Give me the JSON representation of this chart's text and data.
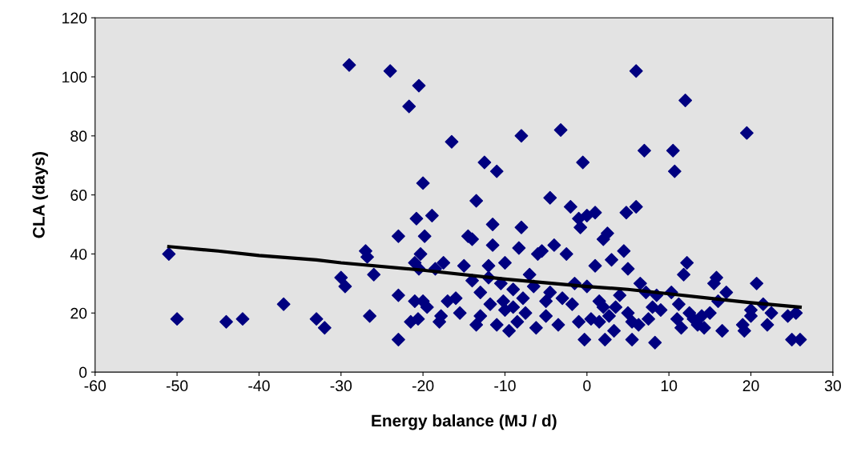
{
  "chart_data": {
    "type": "scatter",
    "xlabel": "Energy balance (MJ / d)",
    "ylabel": "CLA (days)",
    "xlim": [
      -60,
      30
    ],
    "xticks": [
      -60,
      -50,
      -40,
      -30,
      -20,
      -10,
      0,
      10,
      20,
      30
    ],
    "ylim": [
      0,
      120
    ],
    "yticks": [
      0,
      20,
      40,
      60,
      80,
      100,
      120
    ],
    "grid": false,
    "legend": false,
    "marker": "diamond",
    "series": [
      {
        "color": "#000080",
        "x": [
          -51,
          -50,
          -44,
          -42,
          -37,
          -33,
          -32,
          -30,
          -29.5,
          -29,
          -27,
          -26.8,
          -26.5,
          -26,
          -24,
          -23,
          -23,
          -23,
          -21.7,
          -21.5,
          -21,
          -21,
          -20.8,
          -20.5,
          -20.3,
          -20.6,
          -20.5,
          -20,
          -20,
          -19.8,
          -19.5,
          -18.9,
          -18.5,
          -18,
          -17.8,
          -17.5,
          -17,
          -16.5,
          -16,
          -15.5,
          -15,
          -14.5,
          -14,
          -14,
          -13.5,
          -13.5,
          -13,
          -13,
          -12.5,
          -12,
          -12,
          -11.8,
          -11.5,
          -11.5,
          -11,
          -11,
          -10.5,
          -10.2,
          -10,
          -10,
          -9.5,
          -9,
          -9,
          -8.5,
          -8.3,
          -8,
          -8,
          -7.8,
          -7.5,
          -7,
          -6.5,
          -6.2,
          -6,
          -5.5,
          -5,
          -5,
          -4.5,
          -4.5,
          -4,
          -3.5,
          -3.2,
          -3,
          -2.5,
          -2,
          -1.8,
          -1.5,
          -1,
          -1,
          -0.8,
          -0.5,
          -0.3,
          0,
          0,
          0.5,
          1,
          1,
          1.5,
          1.5,
          2,
          2,
          2.2,
          2.5,
          2.7,
          3,
          3.3,
          3.5,
          4,
          4.5,
          4.8,
          5,
          5,
          5.5,
          5.5,
          6,
          6,
          6.3,
          6.5,
          7,
          7.2,
          7.5,
          8,
          8.3,
          8.5,
          9,
          10.3,
          10.5,
          10.7,
          11,
          11.2,
          11.5,
          11.8,
          12,
          12.2,
          12.5,
          13,
          13.5,
          14,
          14.3,
          15,
          15.5,
          15.8,
          16,
          16.5,
          17,
          19,
          19.2,
          19.5,
          20,
          20,
          20.7,
          21.5,
          22,
          22.5,
          24.5,
          25,
          25.5,
          26
        ],
        "values": [
          40,
          18,
          17,
          18,
          23,
          18,
          15,
          32,
          29,
          104,
          41,
          39,
          19,
          33,
          102,
          26,
          46,
          11,
          90,
          17,
          24,
          37,
          52,
          35,
          40,
          18,
          97,
          64,
          24,
          46,
          22,
          53,
          35,
          17,
          19,
          37,
          24,
          78,
          25,
          20,
          36,
          46,
          45,
          31,
          58,
          16,
          27,
          19,
          71,
          36,
          32,
          23,
          50,
          43,
          68,
          16,
          30,
          24,
          37,
          21,
          14,
          28,
          22,
          17,
          42,
          80,
          49,
          25,
          20,
          33,
          29,
          15,
          40,
          41,
          24,
          19,
          59,
          27,
          43,
          16,
          82,
          25,
          40,
          56,
          23,
          30,
          52,
          17,
          49,
          71,
          11,
          53,
          29,
          18,
          54,
          36,
          17,
          24,
          22,
          45,
          11,
          47,
          19,
          38,
          14,
          22,
          26,
          41,
          54,
          20,
          35,
          11,
          17,
          56,
          102,
          16,
          30,
          75,
          27,
          18,
          22,
          10,
          26,
          21,
          27,
          75,
          68,
          18,
          23,
          15,
          33,
          92,
          37,
          20,
          18,
          16,
          19,
          15,
          20,
          30,
          32,
          24,
          14,
          27,
          16,
          14,
          81,
          21,
          19,
          30,
          23,
          16,
          20,
          19,
          11,
          20,
          11
        ]
      },
      {
        "type": "line",
        "color": "#000000",
        "marker": "none",
        "x": [
          -51,
          -45,
          -40,
          -33,
          -30,
          -20,
          -10,
          0,
          5,
          10,
          15,
          20,
          26
        ],
        "values": [
          42.5,
          41,
          39.5,
          38,
          37,
          34.5,
          31.5,
          29,
          28,
          26.5,
          25,
          23.5,
          22
        ]
      }
    ]
  }
}
